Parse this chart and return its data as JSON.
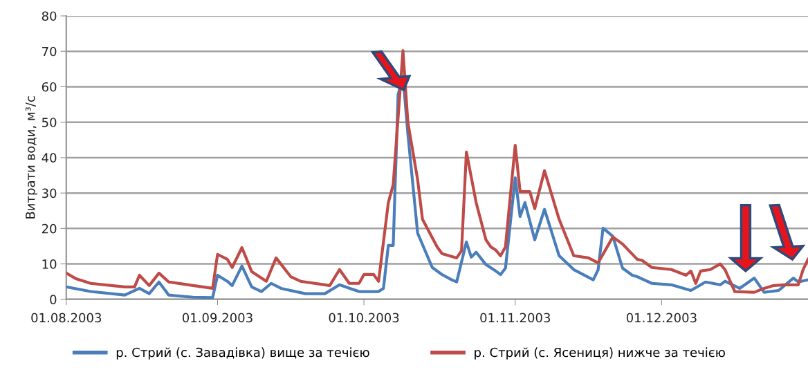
{
  "chart_data": {
    "type": "line",
    "ylabel": "Витрати води, м³/с",
    "xlim": [
      "2003-08-01",
      "2003-12-31"
    ],
    "xticks": [
      {
        "value": "2003-08-01",
        "label": "01.08.2003"
      },
      {
        "value": "2003-09-01",
        "label": "01.09.2003"
      },
      {
        "value": "2003-10-01",
        "label": "01.10.2003"
      },
      {
        "value": "2003-11-01",
        "label": "01.11.2003"
      },
      {
        "value": "2003-12-01",
        "label": "01.12.2003"
      }
    ],
    "ylim": [
      0,
      80
    ],
    "yticks": [
      0,
      10,
      20,
      30,
      40,
      50,
      60,
      70,
      80
    ],
    "grid": "y",
    "legend": "bottom",
    "marker": "none",
    "line_style": "solid",
    "series": [
      {
        "name": "р. Стрий (с. Завадівка) вище за течією",
        "color": "#4a7ebb",
        "x": [
          "2003-08-01",
          "2003-08-06",
          "2003-08-13",
          "2003-08-16",
          "2003-08-18",
          "2003-08-20",
          "2003-08-22",
          "2003-08-27",
          "2003-08-31",
          "2003-09-01",
          "2003-09-03",
          "2003-09-04",
          "2003-09-06",
          "2003-09-08",
          "2003-09-10",
          "2003-09-12",
          "2003-09-14",
          "2003-09-19",
          "2003-09-23",
          "2003-09-26",
          "2003-09-30",
          "2003-10-04",
          "2003-10-05",
          "2003-10-06",
          "2003-10-07",
          "2003-10-08",
          "2003-10-09",
          "2003-10-10",
          "2003-10-12",
          "2003-10-15",
          "2003-10-17",
          "2003-10-19",
          "2003-10-20",
          "2003-10-22",
          "2003-10-23",
          "2003-10-24",
          "2003-10-26",
          "2003-10-28",
          "2003-10-29",
          "2003-10-30",
          "2003-11-01",
          "2003-11-02",
          "2003-11-03",
          "2003-11-05",
          "2003-11-07",
          "2003-11-10",
          "2003-11-13",
          "2003-11-17",
          "2003-11-18",
          "2003-11-19",
          "2003-11-21",
          "2003-11-23",
          "2003-11-25",
          "2003-11-26",
          "2003-11-29",
          "2003-12-03",
          "2003-12-07",
          "2003-12-10",
          "2003-12-13",
          "2003-12-14",
          "2003-12-17",
          "2003-12-20",
          "2003-12-22",
          "2003-12-25",
          "2003-12-28",
          "2003-12-29",
          "2003-12-31"
        ],
        "values": [
          3.5,
          2.2,
          1.2,
          3.1,
          1.6,
          4.9,
          1.2,
          0.6,
          0.5,
          6.8,
          5.1,
          3.9,
          9.4,
          3.5,
          2.2,
          4.5,
          3.1,
          1.6,
          1.6,
          4.1,
          2.2,
          2.2,
          3.1,
          15.2,
          15.2,
          57.8,
          63,
          46.8,
          18.7,
          9,
          7,
          5.5,
          4.9,
          16.2,
          11.9,
          13.3,
          9.8,
          8,
          7,
          8.8,
          34.3,
          23.4,
          27.3,
          16.8,
          25.4,
          12.3,
          8.4,
          5.5,
          8.4,
          20.1,
          17.8,
          8.8,
          6.8,
          6.4,
          4.5,
          4.1,
          2.5,
          4.9,
          4.1,
          5.1,
          3.1,
          6,
          2,
          2.5,
          6,
          4.9,
          5.5
        ]
      },
      {
        "name": "р. Стрий (с. Ясениця) нижче за течією",
        "color": "#be4b48",
        "x": [
          "2003-08-01",
          "2003-08-03",
          "2003-08-06",
          "2003-08-13",
          "2003-08-15",
          "2003-08-16",
          "2003-08-18",
          "2003-08-20",
          "2003-08-22",
          "2003-08-27",
          "2003-08-31",
          "2003-09-01",
          "2003-09-03",
          "2003-09-04",
          "2003-09-06",
          "2003-09-08",
          "2003-09-11",
          "2003-09-13",
          "2003-09-16",
          "2003-09-18",
          "2003-09-24",
          "2003-09-26",
          "2003-09-28",
          "2003-09-30",
          "2003-10-01",
          "2003-10-03",
          "2003-10-04",
          "2003-10-06",
          "2003-10-07",
          "2003-10-09",
          "2003-10-10",
          "2003-10-12",
          "2003-10-13",
          "2003-10-16",
          "2003-10-17",
          "2003-10-20",
          "2003-10-21",
          "2003-10-22",
          "2003-10-24",
          "2003-10-26",
          "2003-10-27",
          "2003-10-28",
          "2003-10-29",
          "2003-10-30",
          "2003-11-01",
          "2003-11-02",
          "2003-11-04",
          "2003-11-05",
          "2003-11-07",
          "2003-11-10",
          "2003-11-13",
          "2003-11-16",
          "2003-11-18",
          "2003-11-21",
          "2003-11-23",
          "2003-11-26",
          "2003-11-27",
          "2003-11-29",
          "2003-12-03",
          "2003-12-06",
          "2003-12-07",
          "2003-12-08",
          "2003-12-09",
          "2003-12-11",
          "2003-12-13",
          "2003-12-14",
          "2003-12-16",
          "2003-12-20",
          "2003-12-22",
          "2003-12-24",
          "2003-12-26",
          "2003-12-29",
          "2003-12-30",
          "2003-12-31"
        ],
        "values": [
          7.4,
          5.8,
          4.5,
          3.5,
          3.5,
          6.8,
          3.9,
          7.4,
          4.9,
          3.9,
          3.1,
          12.7,
          11.3,
          9,
          14.6,
          7.8,
          5.1,
          11.7,
          6.4,
          5.1,
          3.9,
          8.4,
          4.5,
          4.5,
          7,
          7,
          5.1,
          27.3,
          32.4,
          70.2,
          50,
          33.8,
          22.6,
          14.8,
          12.9,
          11.7,
          13.7,
          41.6,
          27.3,
          16.8,
          14.8,
          13.9,
          12.3,
          14.8,
          43.5,
          30.4,
          30.4,
          25.6,
          36.3,
          22.6,
          12.3,
          11.7,
          10.3,
          17.6,
          15.6,
          11.3,
          11,
          9,
          8.4,
          6.8,
          8,
          4.5,
          8,
          8.4,
          10,
          8.4,
          2.2,
          2,
          3.1,
          3.9,
          4.1,
          4.1,
          8.4,
          11.3
        ]
      }
    ]
  }
}
